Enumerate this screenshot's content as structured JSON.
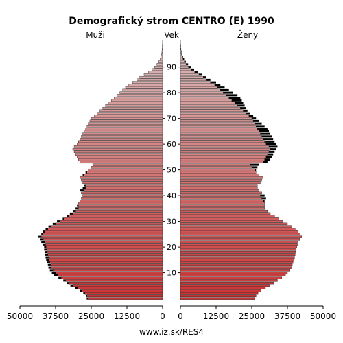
{
  "chart_data": {
    "type": "bar",
    "title": "Demografický strom CENTRO (E) 1990",
    "left_label": "Muži",
    "center_label": "Vek",
    "right_label": "Ženy",
    "credit": "www.iz.sk/RES4",
    "x_max": 50000,
    "x_ticks_left": [
      "50000",
      "37500",
      "25000",
      "12500",
      "0"
    ],
    "x_ticks_right": [
      "0",
      "12500",
      "25000",
      "37500",
      "50000"
    ],
    "age_ticks": [
      "10",
      "20",
      "30",
      "40",
      "50",
      "60",
      "70",
      "80",
      "90"
    ],
    "colors": {
      "young": "#cc3333",
      "old": "#d9bfbf",
      "excess": "#000000"
    },
    "ages": [
      0,
      1,
      2,
      3,
      4,
      5,
      6,
      7,
      8,
      9,
      10,
      11,
      12,
      13,
      14,
      15,
      16,
      17,
      18,
      19,
      20,
      21,
      22,
      23,
      24,
      25,
      26,
      27,
      28,
      29,
      30,
      31,
      32,
      33,
      34,
      35,
      36,
      37,
      38,
      39,
      40,
      41,
      42,
      43,
      44,
      45,
      46,
      47,
      48,
      49,
      50,
      51,
      52,
      53,
      54,
      55,
      56,
      57,
      58,
      59,
      60,
      61,
      62,
      63,
      64,
      65,
      66,
      67,
      68,
      69,
      70,
      71,
      72,
      73,
      74,
      75,
      76,
      77,
      78,
      79,
      80,
      81,
      82,
      83,
      84,
      85,
      86,
      87,
      88,
      89,
      90,
      91,
      92,
      93,
      94,
      95,
      96,
      97,
      98,
      99,
      100
    ],
    "males": [
      26600,
      26900,
      27800,
      29000,
      30600,
      32300,
      33500,
      34800,
      36500,
      38000,
      38800,
      39500,
      40000,
      40200,
      40600,
      40800,
      41000,
      41200,
      41200,
      41500,
      41500,
      42000,
      42500,
      43000,
      43500,
      42500,
      42000,
      41000,
      40000,
      38500,
      37000,
      35000,
      33500,
      32500,
      31500,
      30500,
      30000,
      29500,
      29000,
      28500,
      28000,
      28500,
      29000,
      28000,
      27500,
      28000,
      28500,
      29000,
      28000,
      27000,
      26000,
      25000,
      24500,
      29000,
      29500,
      30000,
      30500,
      31000,
      31500,
      31000,
      30000,
      29500,
      29000,
      28500,
      28000,
      27500,
      27000,
      26500,
      26000,
      25500,
      25000,
      24000,
      23000,
      22000,
      21000,
      20000,
      19000,
      18000,
      17000,
      16000,
      15000,
      14000,
      13000,
      12000,
      10500,
      9000,
      8000,
      6500,
      5000,
      3800,
      2800,
      2000,
      1400,
      900,
      600,
      400,
      250,
      150,
      80,
      40,
      20
    ],
    "females": [
      26000,
      26500,
      27200,
      28300,
      29800,
      31300,
      32700,
      34000,
      35500,
      36800,
      37500,
      38400,
      39000,
      39200,
      39500,
      39800,
      40000,
      40200,
      40400,
      40600,
      40800,
      41000,
      41300,
      41800,
      42500,
      42000,
      41200,
      40200,
      39000,
      37500,
      36000,
      34500,
      33000,
      31500,
      30500,
      29500,
      29500,
      29500,
      29500,
      30000,
      29500,
      28500,
      27500,
      27000,
      27000,
      28000,
      28500,
      29000,
      27500,
      26500,
      26500,
      27000,
      27500,
      30500,
      31500,
      32000,
      32500,
      33000,
      33500,
      34000,
      33500,
      33000,
      32500,
      32000,
      31500,
      31000,
      30500,
      29500,
      28500,
      27500,
      26500,
      25500,
      24500,
      23500,
      23000,
      22500,
      22000,
      21500,
      21000,
      20000,
      18500,
      17000,
      15500,
      14000,
      12500,
      10500,
      9000,
      7500,
      6000,
      4800,
      3700,
      2700,
      1900,
      1300,
      900,
      600,
      400,
      250,
      150,
      80,
      40
    ]
  }
}
